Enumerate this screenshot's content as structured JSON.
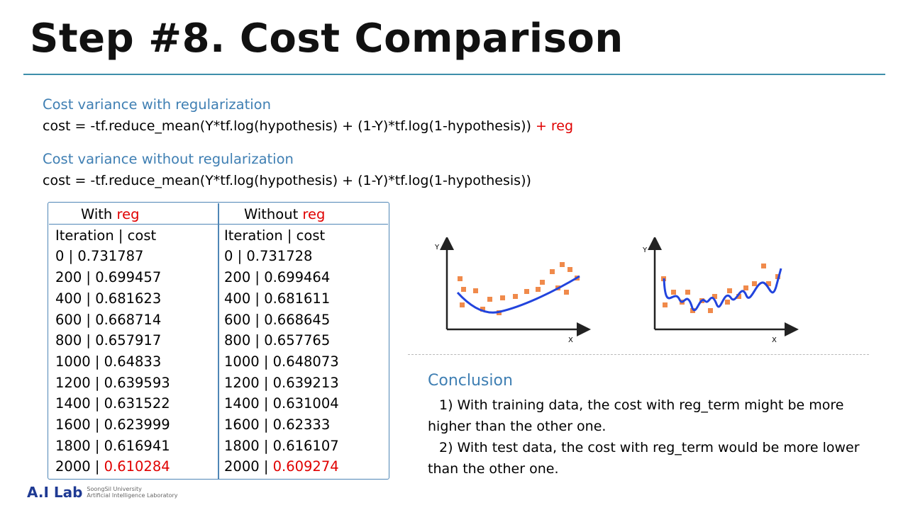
{
  "slide": {
    "title": "Step #8. Cost Comparison"
  },
  "with_reg_section": {
    "heading": "Cost variance with regularization",
    "formula": "cost = -tf.reduce_mean(Y*tf.log(hypothesis) + (1-Y)*tf.log(1-hypothesis))",
    "formula_suffix": " + reg"
  },
  "without_reg_section": {
    "heading": "Cost variance without regularization",
    "formula": "cost = -tf.reduce_mean(Y*tf.log(hypothesis) + (1-Y)*tf.log(1-hypothesis))"
  },
  "table": {
    "with_reg": {
      "header_prefix": "With ",
      "header_highlight": "reg",
      "col_header": "Iteration | cost",
      "rows": [
        {
          "iter": "0",
          "sep": " | ",
          "cost": "0.731787"
        },
        {
          "iter": "200",
          "sep": " | ",
          "cost": "0.699457"
        },
        {
          "iter": "400",
          "sep": " | ",
          "cost": "0.681623"
        },
        {
          "iter": "600",
          "sep": " | ",
          "cost": "0.668714"
        },
        {
          "iter": "800",
          "sep": " | ",
          "cost": "0.657917"
        },
        {
          "iter": "1000",
          "sep": " | ",
          "cost": "0.64833"
        },
        {
          "iter": "1200",
          "sep": " | ",
          "cost": "0.639593"
        },
        {
          "iter": "1400",
          "sep": " | ",
          "cost": "0.631522"
        },
        {
          "iter": "1600",
          "sep": " | ",
          "cost": "0.623999"
        },
        {
          "iter": "1800",
          "sep": " | ",
          "cost": "0.616941"
        },
        {
          "iter": "2000",
          "sep": " | ",
          "cost": "0.610284"
        }
      ]
    },
    "without_reg": {
      "header_prefix": "Without ",
      "header_highlight": "reg",
      "col_header": "Iteration | cost",
      "rows": [
        {
          "iter": "0",
          "sep": " | ",
          "cost": "0.731728"
        },
        {
          "iter": "200",
          "sep": " | ",
          "cost": "0.699464"
        },
        {
          "iter": "400",
          "sep": " | ",
          "cost": "0.681611"
        },
        {
          "iter": "600",
          "sep": " | ",
          "cost": "0.668645"
        },
        {
          "iter": "800",
          "sep": " | ",
          "cost": "0.657765"
        },
        {
          "iter": "1000",
          "sep": " | ",
          "cost": "0.648073"
        },
        {
          "iter": "1200",
          "sep": " | ",
          "cost": "0.639213"
        },
        {
          "iter": "1400",
          "sep": " | ",
          "cost": "0.631004"
        },
        {
          "iter": "1600",
          "sep": " | ",
          "cost": "0.62333"
        },
        {
          "iter": "1800",
          "sep": " | ",
          "cost": "0.616107"
        },
        {
          "iter": "2000",
          "sep": " | ",
          "cost": "0.609274"
        }
      ]
    }
  },
  "illustrations": {
    "left": {
      "y_label": "Y",
      "x_label": "X"
    },
    "right": {
      "y_label": "Y",
      "x_label": "X"
    }
  },
  "conclusion": {
    "heading": "Conclusion",
    "line1": "1) With training data, the cost with reg_term might be more higher than the other one.",
    "line2": "2) With test data, the cost with reg_term would be more lower than the other one."
  },
  "footer": {
    "logo_main": "A.I Lab",
    "logo_sub_1": "SoongSil University",
    "logo_sub_2": "Artificial Intelligence Laboratory"
  },
  "colors": {
    "accent_blue": "#3f7fb3",
    "highlight_red": "#e00000",
    "rule": "#3d8eaa",
    "curve": "#2244dd",
    "points": "#f08a4b"
  }
}
